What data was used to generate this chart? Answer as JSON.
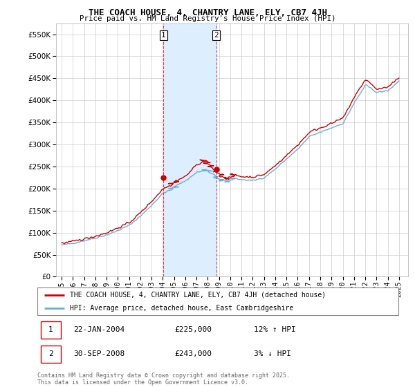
{
  "title": "THE COACH HOUSE, 4, CHANTRY LANE, ELY, CB7 4JH",
  "subtitle": "Price paid vs. HM Land Registry's House Price Index (HPI)",
  "legend_line1": "THE COACH HOUSE, 4, CHANTRY LANE, ELY, CB7 4JH (detached house)",
  "legend_line2": "HPI: Average price, detached house, East Cambridgeshire",
  "annotation1_label": "1",
  "annotation1_date": "22-JAN-2004",
  "annotation1_price": "£225,000",
  "annotation1_hpi": "12% ↑ HPI",
  "annotation2_label": "2",
  "annotation2_date": "30-SEP-2008",
  "annotation2_price": "£243,000",
  "annotation2_hpi": "3% ↓ HPI",
  "footer": "Contains HM Land Registry data © Crown copyright and database right 2025.\nThis data is licensed under the Open Government Licence v3.0.",
  "hpi_color": "#6baed6",
  "price_color": "#cc0000",
  "band_color": "#ddeeff",
  "marker1_x_year": 2004.06,
  "marker2_x_year": 2008.75,
  "marker1_price": 225000,
  "marker2_price": 243000,
  "ylim": [
    0,
    575000
  ],
  "xlim_start": 1994.5,
  "xlim_end": 2025.8,
  "yticks": [
    0,
    50000,
    100000,
    150000,
    200000,
    250000,
    300000,
    350000,
    400000,
    450000,
    500000,
    550000
  ],
  "xtick_years": [
    1995,
    1996,
    1997,
    1998,
    1999,
    2000,
    2001,
    2002,
    2003,
    2004,
    2005,
    2006,
    2007,
    2008,
    2009,
    2010,
    2011,
    2012,
    2013,
    2014,
    2015,
    2016,
    2017,
    2018,
    2019,
    2020,
    2021,
    2022,
    2023,
    2024,
    2025
  ]
}
